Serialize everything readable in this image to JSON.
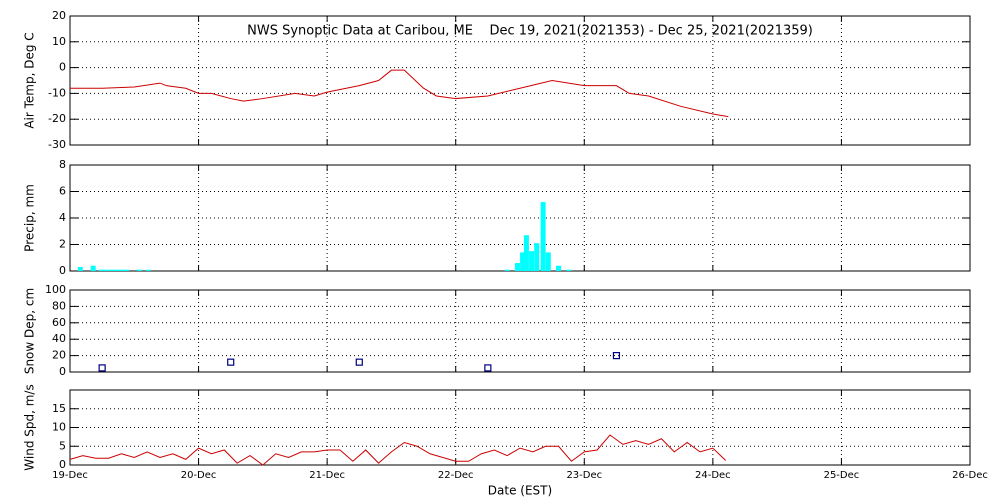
{
  "chart_data": [
    {
      "type": "line",
      "title": "NWS Synoptic Data at Caribou, ME    Dec 19, 2021(2021353) - Dec 25, 2021(2021359)",
      "ylabel": "Air Temp, Deg C",
      "color": "#cc0000",
      "x": [
        0,
        0.25,
        0.5,
        0.7,
        0.75,
        0.9,
        1.0,
        1.1,
        1.25,
        1.35,
        1.5,
        1.75,
        1.9,
        2.0,
        2.25,
        2.4,
        2.5,
        2.6,
        2.75,
        2.85,
        3.0,
        3.25,
        3.5,
        3.75,
        4.0,
        4.25,
        4.35,
        4.5,
        4.75,
        5.0,
        5.12
      ],
      "values": [
        -8,
        -8,
        -7.5,
        -6,
        -7,
        -8,
        -10,
        -10,
        -12,
        -13,
        -12,
        -10,
        -11,
        -9.5,
        -7,
        -5,
        -1,
        -1,
        -8,
        -11,
        -12,
        -11,
        -8,
        -5,
        -7,
        -7,
        -10,
        -11,
        -15,
        -18,
        -19
      ],
      "xlim": [
        0,
        7
      ],
      "xticks": [
        0,
        1,
        2,
        3,
        4,
        5,
        6,
        7
      ],
      "ylim": [
        -30,
        20
      ],
      "yticks": [
        -30,
        -20,
        -10,
        0,
        10,
        20
      ],
      "grid": true
    },
    {
      "type": "bar",
      "ylabel": "Precip, mm",
      "color": "#00ffff",
      "x": [
        0.08,
        0.18,
        0.24,
        0.28,
        0.32,
        0.36,
        0.4,
        0.44,
        0.54,
        0.61,
        3.4,
        3.48,
        3.52,
        3.55,
        3.59,
        3.63,
        3.68,
        3.72,
        3.8,
        3.88
      ],
      "values": [
        0.3,
        0.4,
        0.1,
        0.1,
        0.1,
        0.1,
        0.1,
        0.1,
        0.1,
        0.1,
        0.1,
        0.6,
        1.4,
        2.7,
        1.5,
        2.1,
        5.2,
        1.4,
        0.4,
        0.1
      ],
      "xlim": [
        0,
        7
      ],
      "xticks": [
        0,
        1,
        2,
        3,
        4,
        5,
        6,
        7
      ],
      "ylim": [
        0,
        8
      ],
      "yticks": [
        0,
        2,
        4,
        6,
        8
      ],
      "grid": true
    },
    {
      "type": "scatter",
      "ylabel": "Snow Dep, cm",
      "color": "#000080",
      "x": [
        0.25,
        1.25,
        2.25,
        3.25,
        4.25
      ],
      "values": [
        5,
        12,
        12,
        5,
        20
      ],
      "xlim": [
        0,
        7
      ],
      "xticks": [
        0,
        1,
        2,
        3,
        4,
        5,
        6,
        7
      ],
      "ylim": [
        0,
        100
      ],
      "yticks": [
        0,
        20,
        40,
        60,
        80,
        100
      ],
      "grid": true
    },
    {
      "type": "line",
      "ylabel": "Wind Spd, m/s",
      "xlabel": "Date (EST)",
      "color": "#cc0000",
      "x": [
        0,
        0.1,
        0.2,
        0.3,
        0.4,
        0.5,
        0.6,
        0.7,
        0.8,
        0.9,
        1.0,
        1.1,
        1.2,
        1.3,
        1.4,
        1.5,
        1.6,
        1.7,
        1.8,
        1.9,
        2.0,
        2.1,
        2.2,
        2.3,
        2.4,
        2.5,
        2.6,
        2.7,
        2.8,
        2.9,
        3.0,
        3.1,
        3.2,
        3.3,
        3.4,
        3.5,
        3.6,
        3.7,
        3.8,
        3.9,
        4.0,
        4.1,
        4.2,
        4.3,
        4.4,
        4.5,
        4.6,
        4.7,
        4.8,
        4.9,
        5.0,
        5.1
      ],
      "values": [
        1.5,
        2.5,
        1.8,
        1.8,
        3,
        2,
        3.5,
        2,
        3,
        1.5,
        4.5,
        3,
        4,
        0.5,
        2.5,
        0,
        3,
        2,
        3.5,
        3.5,
        4,
        4,
        1,
        4,
        0.5,
        3.5,
        6,
        5,
        3,
        2,
        1,
        1,
        3,
        4,
        2.5,
        4.5,
        3.5,
        5,
        5,
        1,
        3.5,
        4,
        8,
        5.5,
        6.5,
        5.5,
        7,
        3.5,
        6,
        3.5,
        4.5,
        1.2
      ],
      "xlim": [
        0,
        7
      ],
      "xticks": [
        {
          "value": 0,
          "label": "19-Dec"
        },
        {
          "value": 1,
          "label": "20-Dec"
        },
        {
          "value": 2,
          "label": "21-Dec"
        },
        {
          "value": 3,
          "label": "22-Dec"
        },
        {
          "value": 4,
          "label": "23-Dec"
        },
        {
          "value": 5,
          "label": "24-Dec"
        },
        {
          "value": 6,
          "label": "25-Dec"
        },
        {
          "value": 7,
          "label": "26-Dec"
        }
      ],
      "ylim": [
        0,
        20
      ],
      "yticks": [
        0,
        5,
        10,
        15
      ],
      "grid": true
    }
  ]
}
